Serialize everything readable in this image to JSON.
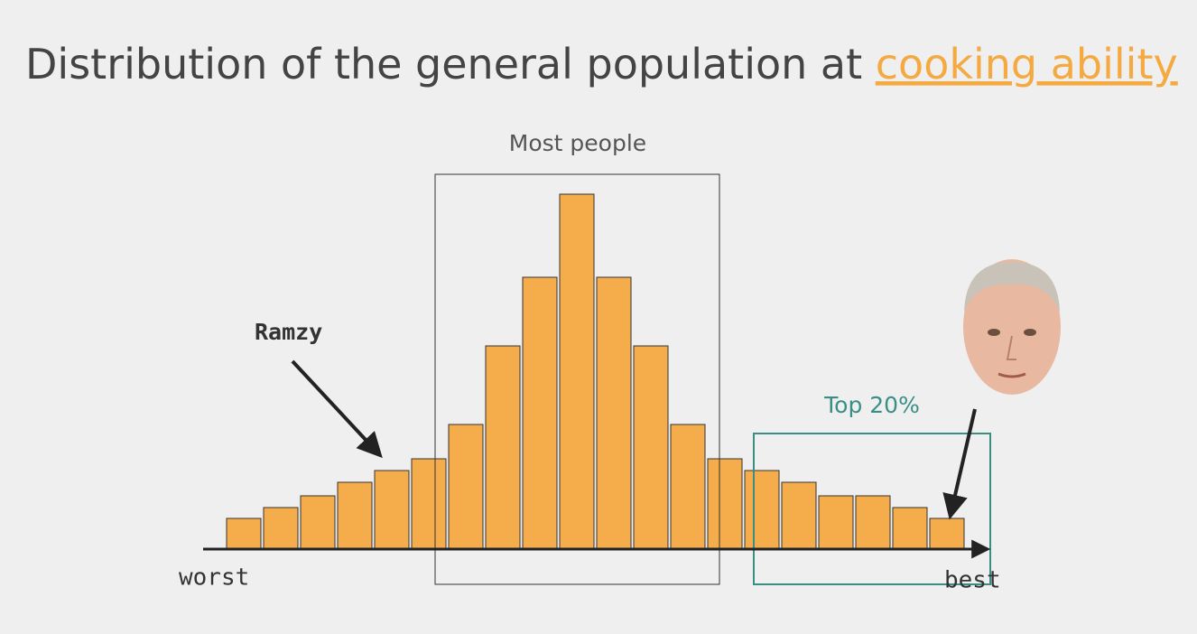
{
  "chart_data": {
    "type": "bar",
    "title": "Distribution of the general population at ",
    "title_link": "cooking ability",
    "categories": [
      null,
      null,
      null,
      null,
      null,
      null,
      null,
      null,
      null,
      null,
      null,
      null,
      null,
      null,
      null,
      null,
      null,
      null,
      null,
      null
    ],
    "values": [
      34,
      46,
      59,
      74,
      87,
      100,
      138,
      225,
      301,
      393,
      301,
      225,
      138,
      100,
      87,
      74,
      59,
      59,
      46,
      34
    ],
    "color": "#f5ad4c",
    "ylim": [
      0,
      400
    ],
    "x_label_left": "worst",
    "x_label_right": "best",
    "annotations": {
      "middle": "Most people",
      "left": "Ramzy",
      "right": "Top 20%"
    }
  }
}
